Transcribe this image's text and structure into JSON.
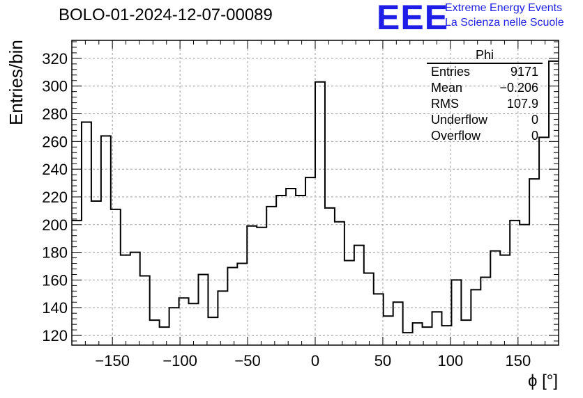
{
  "title": "BOLO-01-2024-12-07-00089",
  "logo": {
    "mark": "EEE",
    "line1": "Extreme Energy Events",
    "line2": "La Scienza nelle Scuole"
  },
  "stats": {
    "name": "Phi",
    "rows": [
      {
        "label": "Entries",
        "value": "9171"
      },
      {
        "label": "Mean",
        "value": "−0.206"
      },
      {
        "label": "RMS",
        "value": "107.9"
      },
      {
        "label": "Underflow",
        "value": "0"
      },
      {
        "label": "Overflow",
        "value": "0"
      }
    ]
  },
  "chart_data": {
    "type": "bar",
    "title": "BOLO-01-2024-12-07-00089",
    "xlabel": "ϕ [°]",
    "ylabel": "Entries/bin",
    "xlim": [
      -180,
      180
    ],
    "ylim": [
      113,
      333
    ],
    "bin_width": 7.2,
    "grid": true,
    "x_ticks": [
      -150,
      -100,
      -50,
      0,
      50,
      100,
      150
    ],
    "x_tick_labels": [
      "−150",
      "−100",
      "−50",
      "0",
      "50",
      "100",
      "150"
    ],
    "y_ticks": [
      120,
      140,
      160,
      180,
      200,
      220,
      240,
      260,
      280,
      300,
      320
    ],
    "values": [
      203,
      274,
      217,
      264,
      211,
      178,
      180,
      163,
      131,
      126,
      140,
      147,
      143,
      164,
      133,
      152,
      169,
      172,
      199,
      198,
      213,
      221,
      226,
      221,
      234,
      303,
      212,
      202,
      174,
      185,
      165,
      150,
      134,
      144,
      122,
      129,
      126,
      137,
      127,
      160,
      131,
      153,
      162,
      181,
      178,
      203,
      200,
      233,
      263,
      318
    ],
    "line_color": "#000000"
  }
}
